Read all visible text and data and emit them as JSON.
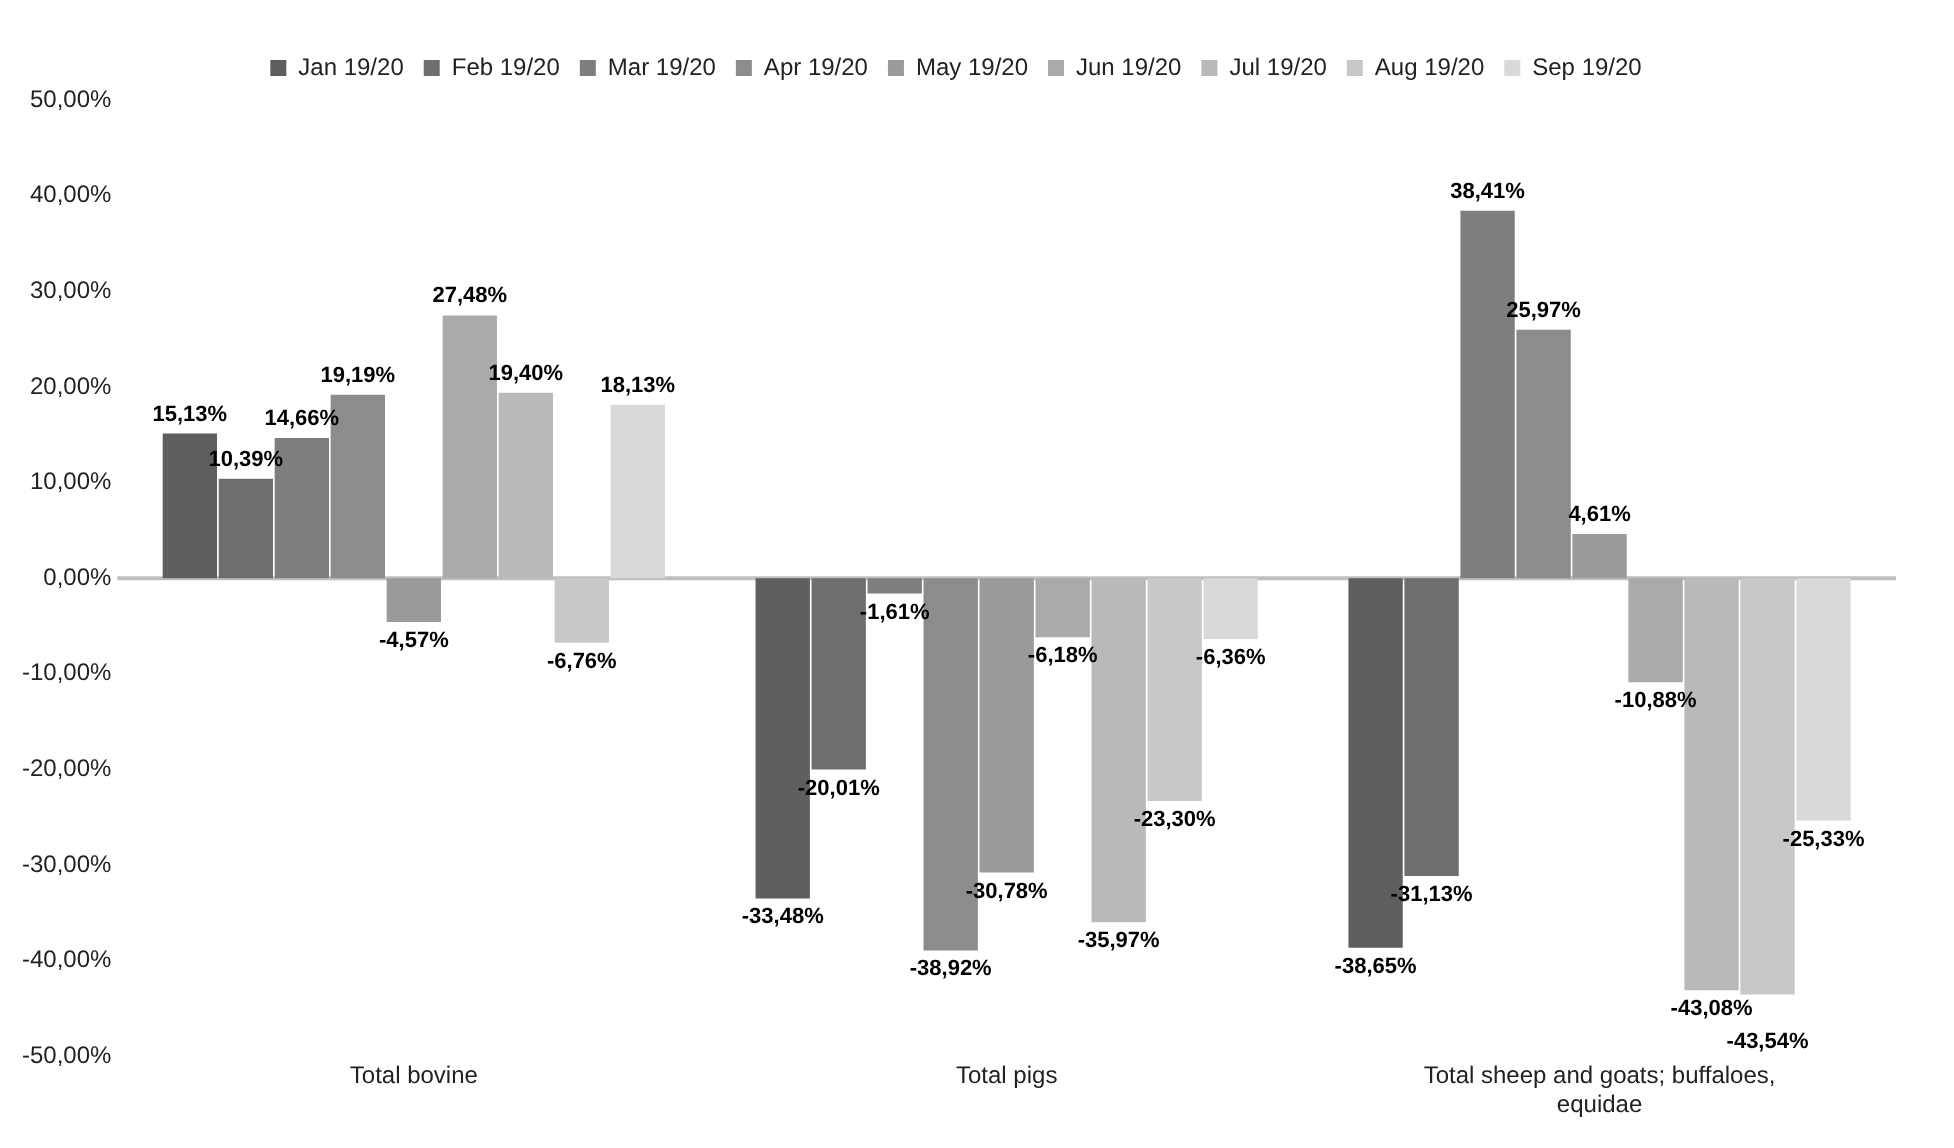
{
  "chart_data": {
    "type": "bar",
    "categories": [
      "Total bovine",
      "Total pigs",
      "Total sheep and goats; buffaloes, equidae"
    ],
    "series": [
      {
        "name": "Jan 19/20",
        "color": "#5e5e5e",
        "values": [
          15.13,
          -33.48,
          -38.65
        ],
        "value_labels": [
          "15,13%",
          "-33,48%",
          "-38,65%"
        ]
      },
      {
        "name": "Feb 19/20",
        "color": "#6e6e6e",
        "values": [
          10.39,
          -20.01,
          -31.13
        ],
        "value_labels": [
          "10,39%",
          "-20,01%",
          "-31,13%"
        ]
      },
      {
        "name": "Mar 19/20",
        "color": "#7e7e7e",
        "values": [
          14.66,
          -1.61,
          38.41
        ],
        "value_labels": [
          "14,66%",
          "-1,61%",
          "38,41%"
        ]
      },
      {
        "name": "Apr 19/20",
        "color": "#8c8c8c",
        "values": [
          19.19,
          -38.92,
          25.97
        ],
        "value_labels": [
          "19,19%",
          "-38,92%",
          "25,97%"
        ]
      },
      {
        "name": "May 19/20",
        "color": "#9a9a9a",
        "values": [
          -4.57,
          -30.78,
          4.61
        ],
        "value_labels": [
          "-4,57%",
          "-30,78%",
          "4,61%"
        ]
      },
      {
        "name": "Jun 19/20",
        "color": "#aaaaaa",
        "values": [
          27.48,
          -6.18,
          -10.88
        ],
        "value_labels": [
          "27,48%",
          "-6,18%",
          "-10,88%"
        ]
      },
      {
        "name": "Jul 19/20",
        "color": "#b9b9b9",
        "values": [
          19.4,
          -35.97,
          -43.08
        ],
        "value_labels": [
          "19,40%",
          "-35,97%",
          "-43,08%"
        ]
      },
      {
        "name": "Aug 19/20",
        "color": "#c8c8c8",
        "values": [
          -6.76,
          -23.3,
          -43.54
        ],
        "value_labels": [
          "-6,76%",
          "-23,30%",
          "-43,54%"
        ]
      },
      {
        "name": "Sep 19/20",
        "color": "#d9d9d9",
        "values": [
          18.13,
          -6.36,
          -25.33
        ],
        "value_labels": [
          "18,13%",
          "-6,36%",
          "-25,33%"
        ]
      }
    ],
    "ylim": [
      -50,
      50
    ],
    "yticks": [
      {
        "value": -50,
        "label": "-50,00%"
      },
      {
        "value": -40,
        "label": "-40,00%"
      },
      {
        "value": -30,
        "label": "-30,00%"
      },
      {
        "value": -20,
        "label": "-20,00%"
      },
      {
        "value": -10,
        "label": "-10,00%"
      },
      {
        "value": 0,
        "label": "0,00%"
      },
      {
        "value": 10,
        "label": "10,00%"
      },
      {
        "value": 20,
        "label": "20,00%"
      },
      {
        "value": 30,
        "label": "30,00%"
      },
      {
        "value": 40,
        "label": "40,00%"
      },
      {
        "value": 50,
        "label": "50,00%"
      }
    ],
    "ref_lines": [
      {
        "axis": "y",
        "value": 0,
        "color": "#bfbfbf"
      }
    ],
    "legend": "top"
  }
}
